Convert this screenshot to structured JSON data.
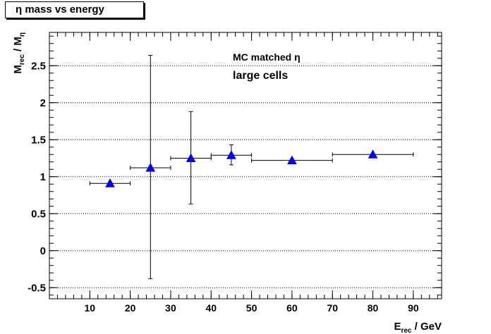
{
  "title": "η mass vs energy",
  "chart_data": {
    "type": "scatter",
    "title": "η mass vs energy",
    "xlabel_main": "E",
    "xlabel_sub": "rec",
    "xlabel_tail": " / GeV",
    "ylabel_main": "M",
    "ylabel_sub": "rec",
    "ylabel_mid": " / M",
    "ylabel_sub2": "η",
    "annotations": [
      "MC matched η",
      "large cells"
    ],
    "xlim": [
      0,
      97
    ],
    "ylim": [
      -0.65,
      2.95
    ],
    "xticks": [
      10,
      20,
      30,
      40,
      50,
      60,
      70,
      80,
      90
    ],
    "yticks": [
      -0.5,
      0,
      0.5,
      1,
      1.5,
      2,
      2.5
    ],
    "ytick_labels": [
      "-0.5",
      "0",
      "0.5",
      "1",
      "1.5",
      "2",
      "2.5"
    ],
    "grid_y": true,
    "marker_color": "#0000ee",
    "points": [
      {
        "x": 15,
        "y": 0.91,
        "xerr": 5,
        "yerr_low": 0.0,
        "yerr_high": 0.0
      },
      {
        "x": 25,
        "y": 1.12,
        "xerr": 5,
        "yerr_low": 1.5,
        "yerr_high": 1.52
      },
      {
        "x": 35,
        "y": 1.25,
        "xerr": 5,
        "yerr_low": 0.62,
        "yerr_high": 0.63
      },
      {
        "x": 45,
        "y": 1.29,
        "xerr": 5,
        "yerr_low": 0.13,
        "yerr_high": 0.14
      },
      {
        "x": 60,
        "y": 1.22,
        "xerr": 10,
        "yerr_low": 0.0,
        "yerr_high": 0.0
      },
      {
        "x": 80,
        "y": 1.3,
        "xerr": 10,
        "yerr_low": 0.0,
        "yerr_high": 0.0
      }
    ]
  }
}
